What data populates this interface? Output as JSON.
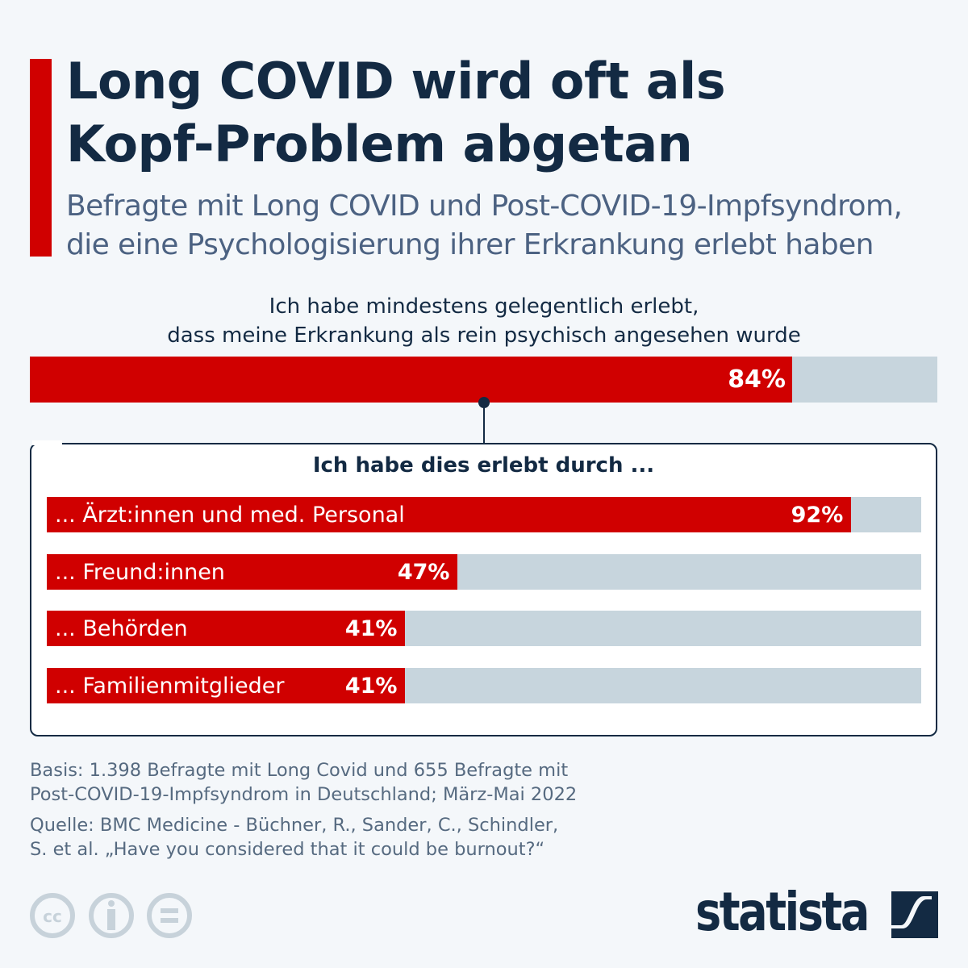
{
  "title": [
    "Long COVID wird oft als",
    "Kopf-Problem abgetan"
  ],
  "subtitle": [
    "Befragte mit Long COVID und Post-COVID-19-Impfsyndrom,",
    "die eine Psychologisierung ihrer Erkrankung erlebt haben"
  ],
  "colors": {
    "accent": "#d00000",
    "track": "#c7d5dd",
    "text": "#132a43"
  },
  "chart_data": [
    {
      "type": "bar",
      "orientation": "horizontal",
      "title": "Ich habe mindestens gelegentlich erlebt, dass meine Erkrankung als rein psychisch angesehen wurde",
      "title_lines": [
        "Ich habe mindestens gelegentlich erlebt,",
        "dass meine Erkrankung als rein psychisch angesehen wurde"
      ],
      "values": [
        84
      ],
      "data_labels": [
        "84%"
      ],
      "xlim": [
        0,
        100
      ]
    },
    {
      "type": "bar",
      "orientation": "horizontal",
      "title": "Ich habe dies erlebt durch ...",
      "categories": [
        "... Ärzt:innen und med. Personal",
        "... Freund:innen",
        "... Behörden",
        "... Familienmitglieder"
      ],
      "values": [
        92,
        47,
        41,
        41
      ],
      "data_labels": [
        "92%",
        "47%",
        "41%",
        "41%"
      ],
      "xlim": [
        0,
        100
      ]
    }
  ],
  "footer": {
    "basis": [
      "Basis: 1.398 Befragte mit Long Covid und 655 Befragte mit",
      "Post-COVID-19-Impfsyndrom in Deutschland; März-Mai 2022"
    ],
    "source": [
      "Quelle: BMC Medicine - Büchner, R., Sander, C., Schindler,",
      "S. et al. „Have you considered that it could be burnout?“"
    ]
  },
  "logo": "statista",
  "license_icons": [
    "cc-icon",
    "by-icon",
    "nd-icon"
  ]
}
